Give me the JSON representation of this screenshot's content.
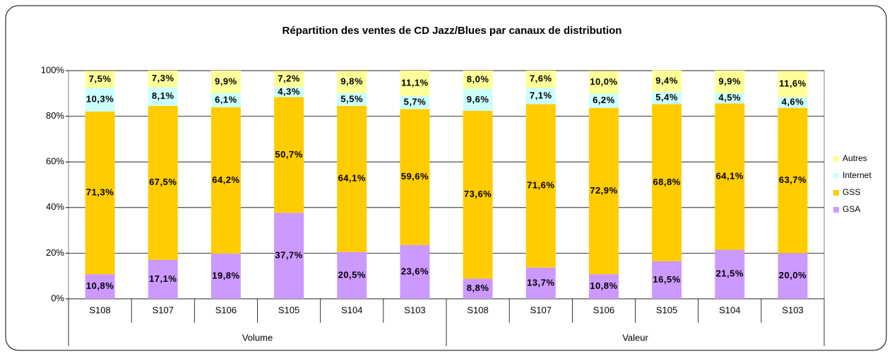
{
  "chart_data": {
    "type": "stacked_bar",
    "title": "Répartition des ventes de CD Jazz/Blues par canaux de distribution",
    "categories": [
      "S108",
      "S107",
      "S106",
      "S105",
      "S104",
      "S103",
      "S108",
      "S107",
      "S106",
      "S105",
      "S104",
      "S103"
    ],
    "groups": [
      "Volume",
      "Valeur"
    ],
    "series": [
      {
        "name": "GSA",
        "color": "#cc99ff",
        "values": [
          10.8,
          17.1,
          19.8,
          37.7,
          20.5,
          23.6,
          8.8,
          13.7,
          10.8,
          16.5,
          21.5,
          20.0
        ],
        "value_labels": [
          "10,8%",
          "17,1%",
          "19,8%",
          "37,7%",
          "20,5%",
          "23,6%",
          "8,8%",
          "13,7%",
          "10,8%",
          "16,5%",
          "21,5%",
          "20,0%"
        ]
      },
      {
        "name": "GSS",
        "color": "#ffcc00",
        "values": [
          71.3,
          67.5,
          64.2,
          50.7,
          64.1,
          59.6,
          73.6,
          71.6,
          72.9,
          68.8,
          64.1,
          63.7
        ],
        "value_labels": [
          "71,3%",
          "67,5%",
          "64,2%",
          "50,7%",
          "64,1%",
          "59,6%",
          "73,6%",
          "71,6%",
          "72,9%",
          "68,8%",
          "64,1%",
          "63,7%"
        ]
      },
      {
        "name": "Internet",
        "color": "#ccffff",
        "values": [
          10.3,
          8.1,
          6.1,
          4.3,
          5.5,
          5.7,
          9.6,
          7.1,
          6.2,
          5.4,
          4.5,
          4.6
        ],
        "value_labels": [
          "10,3%",
          "8,1%",
          "6,1%",
          "4,3%",
          "5,5%",
          "5,7%",
          "9,6%",
          "7,1%",
          "6,2%",
          "5,4%",
          "4,5%",
          "4,6%"
        ]
      },
      {
        "name": "Autres",
        "color": "#ffff99",
        "values": [
          7.5,
          7.3,
          9.9,
          7.2,
          9.8,
          11.1,
          8.0,
          7.6,
          10.0,
          9.4,
          9.9,
          11.6
        ],
        "value_labels": [
          "7,5%",
          "7,3%",
          "9,9%",
          "7,2%",
          "9,8%",
          "11,1%",
          "8,0%",
          "7,6%",
          "10,0%",
          "9,4%",
          "9,9%",
          "11,6%"
        ]
      }
    ],
    "ylim": [
      0,
      100
    ],
    "yticks": [
      {
        "value": 0,
        "label": "0%"
      },
      {
        "value": 20,
        "label": "20%"
      },
      {
        "value": 40,
        "label": "40%"
      },
      {
        "value": 60,
        "label": "60%"
      },
      {
        "value": 80,
        "label": "80%"
      },
      {
        "value": 100,
        "label": "100%"
      }
    ],
    "grid": true,
    "legend": "right"
  }
}
